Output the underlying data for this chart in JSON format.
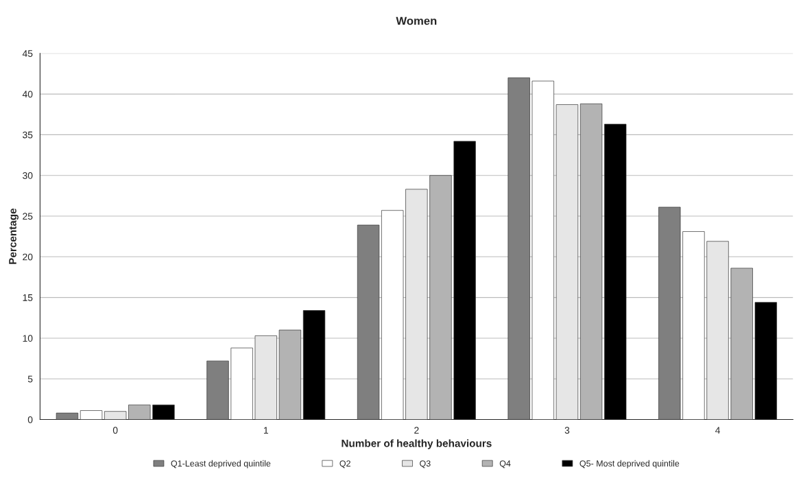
{
  "chart_data": {
    "type": "bar",
    "title": "Women",
    "xlabel": "Number of healthy behaviours",
    "ylabel": "Percentage",
    "categories": [
      "0",
      "1",
      "2",
      "3",
      "4"
    ],
    "series": [
      {
        "name": "Q1-Least deprived quintile",
        "color": "#7f7f7f",
        "values": [
          0.8,
          7.2,
          23.9,
          42.0,
          26.1
        ]
      },
      {
        "name": "Q2",
        "color": "#ffffff",
        "values": [
          1.1,
          8.8,
          25.7,
          41.6,
          23.1
        ]
      },
      {
        "name": "Q3",
        "color": "#e6e6e6",
        "values": [
          1.0,
          10.3,
          28.3,
          38.7,
          21.9
        ]
      },
      {
        "name": "Q4",
        "color": "#b3b3b3",
        "values": [
          1.8,
          11.0,
          30.0,
          38.8,
          18.6
        ]
      },
      {
        "name": "Q5- Most deprived quintile",
        "color": "#000000",
        "values": [
          1.8,
          13.4,
          34.2,
          36.3,
          14.4
        ]
      }
    ],
    "ylim": [
      0,
      45
    ],
    "yticks": [
      0,
      5,
      10,
      15,
      20,
      25,
      30,
      35,
      40,
      45
    ],
    "grid": "y",
    "legend": "bottom"
  }
}
